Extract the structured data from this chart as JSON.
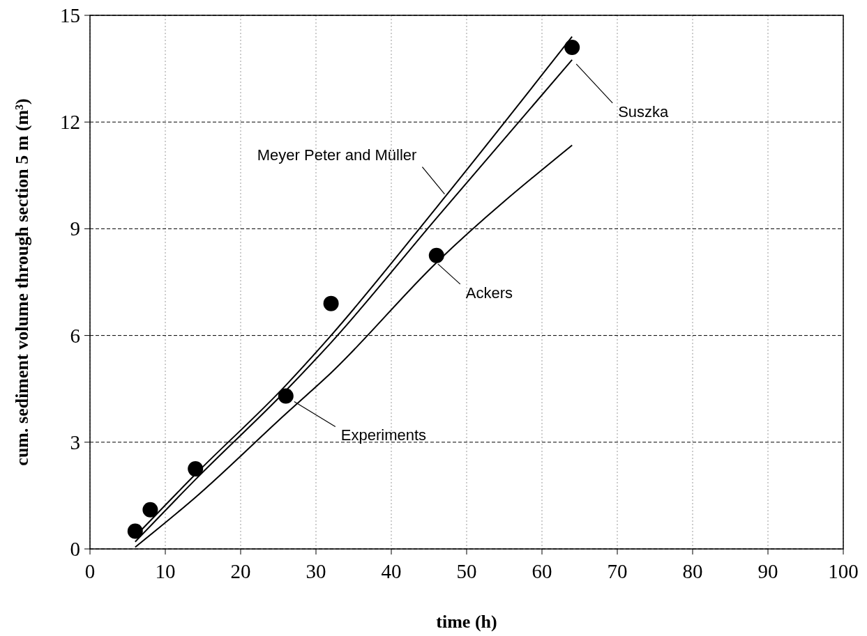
{
  "chart_data": {
    "type": "line",
    "xlabel": "time (h)",
    "ylabel": "cum. sediment volume through section 5 m (m³)",
    "xlim": [
      0,
      100
    ],
    "ylim": [
      0,
      15
    ],
    "xticks": [
      0,
      10,
      20,
      30,
      40,
      50,
      60,
      70,
      80,
      90,
      100
    ],
    "yticks": [
      0,
      3,
      6,
      9,
      12,
      15
    ],
    "grid": true,
    "legend": false,
    "series": [
      {
        "name": "Meyer Peter and Müller",
        "color": "#000000",
        "line_style": "solid",
        "marker": "none",
        "x": [
          6,
          14,
          26,
          32,
          46,
          64
        ],
        "values": [
          0.35,
          2.1,
          4.6,
          6.0,
          9.6,
          14.4
        ]
      },
      {
        "name": "Suszka",
        "color": "#000000",
        "line_style": "solid",
        "marker": "none",
        "x": [
          6,
          14,
          26,
          32,
          46,
          64
        ],
        "values": [
          0.2,
          1.95,
          4.45,
          5.8,
          9.3,
          13.75
        ]
      },
      {
        "name": "Ackers",
        "color": "#000000",
        "line_style": "solid",
        "marker": "none",
        "x": [
          6,
          14,
          26,
          32,
          46,
          64
        ],
        "values": [
          0.05,
          1.45,
          3.8,
          4.95,
          8.05,
          11.35
        ]
      },
      {
        "name": "Experiments",
        "type": "scatter",
        "color": "#000000",
        "marker": "circle",
        "x": [
          6,
          8,
          14,
          26,
          32,
          46,
          64
        ],
        "values": [
          0.5,
          1.1,
          2.25,
          4.3,
          6.9,
          8.25,
          14.1
        ]
      }
    ]
  }
}
